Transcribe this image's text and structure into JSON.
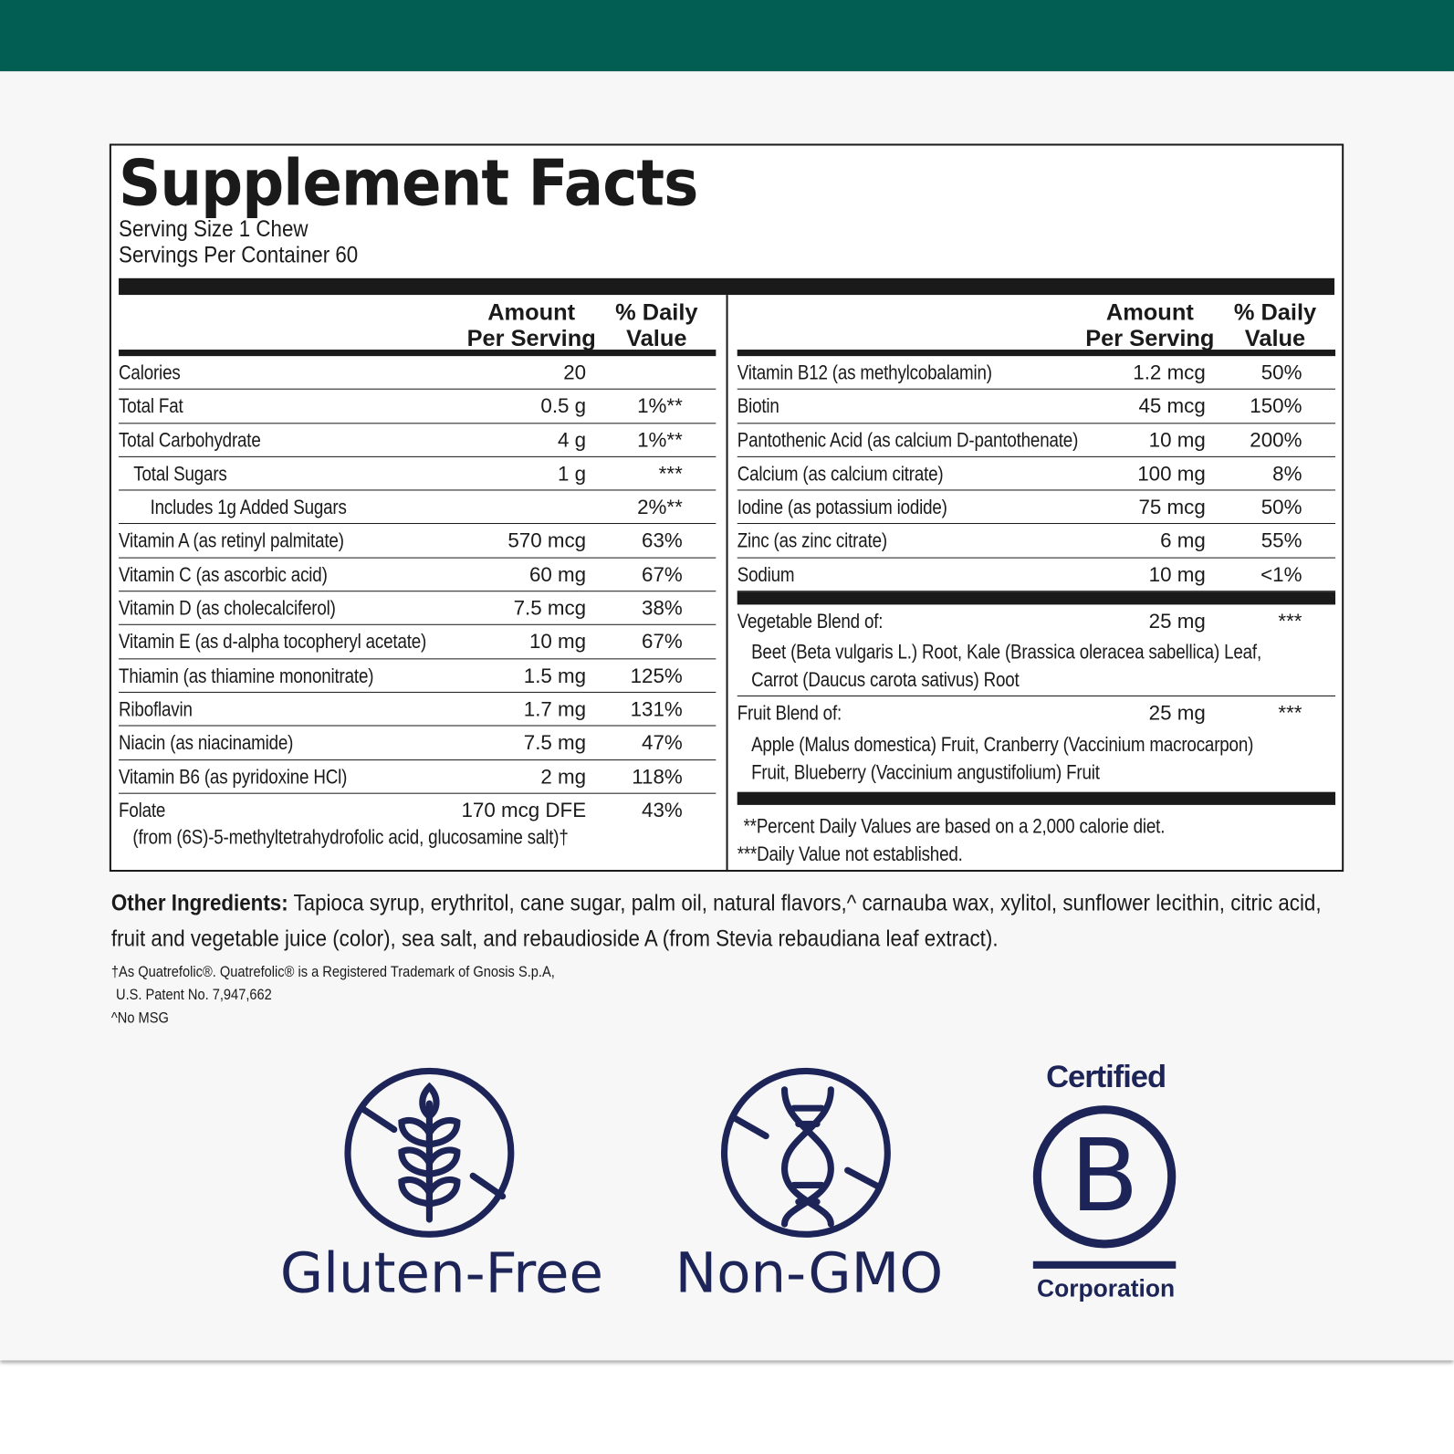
{
  "title": "Supplement Facts",
  "serving_size": "Serving Size 1 Chew",
  "servings_per_container": "Servings Per Container 60",
  "headers": {
    "amount_l1": "Amount",
    "amount_l2": "Per Serving",
    "dv_l1": "% Daily",
    "dv_l2": "Value"
  },
  "left_rows": [
    {
      "name": "Calories",
      "amount": "20",
      "dv": ""
    },
    {
      "name": "Total Fat",
      "amount": "0.5 g",
      "dv": "1%**"
    },
    {
      "name": "Total Carbohydrate",
      "amount": "4 g",
      "dv": "1%**"
    },
    {
      "name": "Total Sugars",
      "amount": "1 g",
      "dv": "***"
    },
    {
      "name": "Includes 1g Added Sugars",
      "amount": "",
      "dv": "2%**"
    },
    {
      "name": "Vitamin A (as retinyl palmitate)",
      "amount": "570 mcg",
      "dv": "63%"
    },
    {
      "name": "Vitamin C (as ascorbic acid)",
      "amount": "60 mg",
      "dv": "67%"
    },
    {
      "name": "Vitamin D (as cholecalciferol)",
      "amount": "7.5 mcg",
      "dv": "38%"
    },
    {
      "name": "Vitamin E (as d-alpha tocopheryl acetate)",
      "amount": "10 mg",
      "dv": "67%"
    },
    {
      "name": "Thiamin (as thiamine mononitrate)",
      "amount": "1.5 mg",
      "dv": "125%"
    },
    {
      "name": "Riboflavin",
      "amount": "1.7 mg",
      "dv": "131%"
    },
    {
      "name": "Niacin (as niacinamide)",
      "amount": "7.5 mg",
      "dv": "47%"
    },
    {
      "name": "Vitamin B6 (as pyridoxine HCl)",
      "amount": "2 mg",
      "dv": "118%"
    },
    {
      "name": "Folate",
      "amount": "170 mcg DFE",
      "dv": "43%"
    }
  ],
  "folate_source": "(from (6S)-5-methyltetrahydrofolic acid, glucosamine salt)†",
  "right_rows": [
    {
      "name": "Vitamin B12 (as methylcobalamin)",
      "amount": "1.2 mcg",
      "dv": "50%"
    },
    {
      "name": "Biotin",
      "amount": "45 mcg",
      "dv": "150%"
    },
    {
      "name": "Pantothenic Acid (as calcium D-pantothenate)",
      "amount": "10 mg",
      "dv": "200%"
    },
    {
      "name": "Calcium (as calcium citrate)",
      "amount": "100 mg",
      "dv": "8%"
    },
    {
      "name": "Iodine (as potassium iodide)",
      "amount": "75 mcg",
      "dv": "50%"
    },
    {
      "name": "Zinc (as zinc citrate)",
      "amount": "6 mg",
      "dv": "55%"
    },
    {
      "name": "Sodium",
      "amount": "10 mg",
      "dv": "<1%"
    }
  ],
  "veg_blend": {
    "name": "Vegetable Blend of:",
    "amount": "25 mg",
    "dv": "***",
    "detail1": "Beet (Beta vulgaris L.) Root, Kale (Brassica oleracea sabellica) Leaf,",
    "detail2": "Carrot (Daucus carota sativus) Root"
  },
  "fruit_blend": {
    "name": "Fruit Blend of:",
    "amount": "25 mg",
    "dv": "***",
    "detail1": "Apple (Malus domestica) Fruit, Cranberry (Vaccinium macrocarpon)",
    "detail2": "Fruit, Blueberry (Vaccinium angustifolium) Fruit"
  },
  "footnote_dv": "**Percent Daily Values are based on a 2,000 calorie diet.",
  "footnote_ne": "***Daily Value not established.",
  "other_ingredients_label": "Other Ingredients:",
  "other_ingredients": "Tapioca syrup, erythritol, cane sugar, palm oil, natural flavors,^ carnauba wax, xylitol, sunflower lecithin, citric acid, fruit and vegetable juice (color), sea salt, and rebaudioside A (from Stevia rebaudiana leaf extract).",
  "fn1": "†As Quatrefolic®. Quatrefolic® is a Registered Trademark of Gnosis S.p.A,",
  "fn2": "U.S. Patent No. 7,947,662",
  "fn3": "^No MSG",
  "badges": {
    "gluten": "Gluten-Free",
    "gmo": "Non-GMO",
    "bcorp_top": "Certified",
    "bcorp_letter": "B",
    "bcorp_bottom": "Corporation"
  },
  "colors": {
    "topbar": "#025e52",
    "badge": "#1d2457"
  }
}
